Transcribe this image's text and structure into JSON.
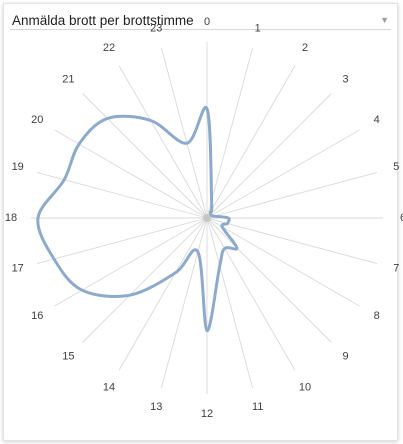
{
  "widget": {
    "title": "Anmälda brott per brottstimme",
    "dropdown_icon": "chevron-down-icon"
  },
  "colors": {
    "series": "#8eaacb",
    "grid": "#d9d9d9",
    "label": "#404040",
    "center": "#c6c6c6"
  },
  "chart_data": {
    "type": "radar",
    "title": "Anmälda brott per brottstimme",
    "categories": [
      "0",
      "1",
      "2",
      "3",
      "4",
      "5",
      "6",
      "7",
      "8",
      "9",
      "10",
      "11",
      "12",
      "13",
      "14",
      "15",
      "16",
      "17",
      "18",
      "19",
      "20",
      "21",
      "22",
      "23"
    ],
    "values": [
      62,
      10,
      4,
      3,
      3,
      4,
      12,
      12,
      10,
      24,
      20,
      28,
      64,
      20,
      36,
      62,
      82,
      90,
      96,
      84,
      84,
      80,
      64,
      44
    ],
    "range": [
      0,
      100
    ],
    "grid": true,
    "legend": "none"
  }
}
